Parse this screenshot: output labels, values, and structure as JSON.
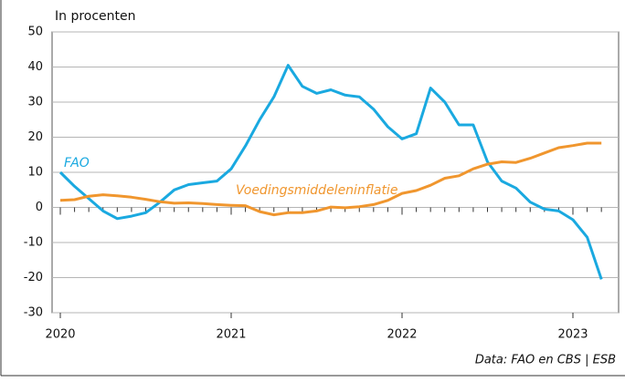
{
  "chart_data": {
    "type": "line",
    "y_label": "In procenten",
    "source": "Data: FAO en CBS | ESB",
    "categories": [
      "2020",
      null,
      null,
      null,
      null,
      null,
      null,
      null,
      null,
      null,
      null,
      null,
      "2021",
      null,
      null,
      null,
      null,
      null,
      null,
      null,
      null,
      null,
      null,
      null,
      "2022",
      null,
      null,
      null,
      null,
      null,
      null,
      null,
      null,
      null,
      null,
      null,
      "2023",
      null,
      null
    ],
    "series": [
      {
        "name": "FAO",
        "color": "#1aa9e0",
        "values": [
          10,
          6,
          2.5,
          -1,
          -3.2,
          -2.5,
          -1.5,
          1.5,
          5,
          6.5,
          7,
          7.5,
          11,
          17.5,
          25,
          31.5,
          40.5,
          34.5,
          32.5,
          33.5,
          32,
          31.5,
          28,
          23,
          19.5,
          21,
          34,
          30,
          23.5,
          23.5,
          13,
          7.5,
          5.5,
          1.5,
          -0.5,
          -1,
          -3.5,
          -8.5,
          -20.5
        ]
      },
      {
        "name": "Voedingsmiddeleninflatie",
        "color": "#f0962e",
        "values": [
          2,
          2.2,
          3.2,
          3.6,
          3.3,
          2.9,
          2.3,
          1.6,
          1.2,
          1.3,
          1.1,
          0.8,
          0.6,
          0.5,
          -1.2,
          -2.1,
          -1.5,
          -1.5,
          -1,
          0.1,
          -0.1,
          0.2,
          0.8,
          2,
          4,
          4.8,
          6.3,
          8.3,
          9,
          11,
          12.3,
          13,
          12.8,
          14,
          15.5,
          17,
          17.6,
          18.3,
          18.3
        ]
      }
    ],
    "ylim": [
      -30,
      50
    ],
    "yticks": [
      -30,
      -20,
      -10,
      0,
      10,
      20,
      30,
      40,
      50
    ],
    "grid": true
  }
}
